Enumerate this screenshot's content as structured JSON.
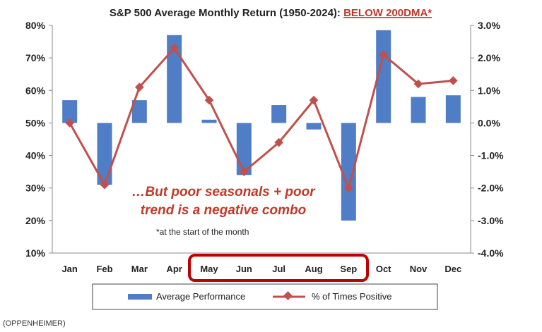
{
  "title_prefix": "S&P 500 Average Monthly Return (1950-2024): ",
  "title_highlight": "BELOW 200DMA*",
  "annotation_line1": "…But poor seasonals + poor",
  "annotation_line2": "trend is a negative combo",
  "footnote": "*at the start of the month",
  "source": "(OPPENHEIMER)",
  "colors": {
    "bar": "#4f7ec7",
    "line": "#c0504d",
    "highlight_box": "#c00000",
    "axis": "#888888"
  },
  "chart_data": {
    "type": "bar",
    "categories": [
      "Jan",
      "Feb",
      "Mar",
      "Apr",
      "May",
      "Jun",
      "Jul",
      "Aug",
      "Sep",
      "Oct",
      "Nov",
      "Dec"
    ],
    "highlighted_categories": [
      "May",
      "Jun",
      "Jul",
      "Aug",
      "Sep"
    ],
    "series": [
      {
        "name": "Average Performance",
        "type": "bar",
        "axis": "right",
        "values": [
          0.7,
          -1.9,
          0.7,
          2.7,
          0.1,
          -1.6,
          0.55,
          -0.2,
          -3.0,
          2.85,
          0.8,
          0.85
        ]
      },
      {
        "name": "% of Times Positive",
        "type": "line",
        "axis": "left",
        "values": [
          50,
          31,
          61,
          73,
          57,
          35,
          44,
          57,
          30,
          71,
          62,
          63
        ]
      }
    ],
    "y_left": {
      "min": 10,
      "max": 80,
      "ticks": [
        "10%",
        "20%",
        "30%",
        "40%",
        "50%",
        "60%",
        "70%",
        "80%"
      ]
    },
    "y_right": {
      "min": -4.0,
      "max": 3.0,
      "ticks": [
        "-4.0%",
        "-3.0%",
        "-2.0%",
        "-1.0%",
        "0.0%",
        "1.0%",
        "2.0%",
        "3.0%"
      ]
    },
    "legend": [
      "Average Performance",
      "% of Times Positive"
    ],
    "legend_position": "bottom",
    "grid": false
  }
}
